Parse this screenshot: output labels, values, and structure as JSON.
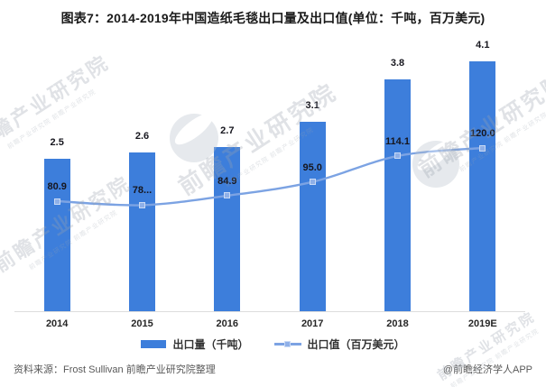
{
  "title": "图表7：2014-2019年中国造纸毛毯出口量及出口值(单位：千吨，百万美元)",
  "chart_data": {
    "type": "bar+line combo",
    "categories": [
      "2014",
      "2015",
      "2016",
      "2017",
      "2018",
      "2019E"
    ],
    "series": [
      {
        "name": "出口量（千吨）",
        "type": "bar",
        "axis": "left",
        "values": [
          2.5,
          2.6,
          2.7,
          3.1,
          3.8,
          4.1
        ],
        "labels": [
          "2.5",
          "2.6",
          "2.7",
          "3.1",
          "3.8",
          "4.1"
        ],
        "color": "#3d7edb"
      },
      {
        "name": "出口值（百万美元）",
        "type": "line",
        "axis": "right",
        "values": [
          80.9,
          78,
          84.9,
          95.0,
          114.1,
          120.0
        ],
        "labels": [
          "80.9",
          "78...",
          "84.9",
          "95.0",
          "114.1",
          "120.0"
        ],
        "color": "#7ca3e3",
        "marker_color": "#8fb0e8"
      }
    ],
    "left_axis": {
      "min": 0,
      "implied_max": 4.5,
      "unit": "千吨",
      "visible": false
    },
    "right_axis": {
      "min": 0,
      "implied_max": 200,
      "unit": "百万美元",
      "visible": false
    },
    "grid": false,
    "data_labels": true,
    "legend_position": "bottom"
  },
  "legend": {
    "items": [
      {
        "label": "出口量（千吨）",
        "swatch": "bar"
      },
      {
        "label": "出口值（百万美元）",
        "swatch": "line-marker"
      }
    ]
  },
  "footer": {
    "source": "资料来源：Frost Sullivan 前瞻产业研究院整理",
    "credit": "@前瞻经济学人APP"
  },
  "watermark": {
    "text": "前瞻产业研究院"
  },
  "colors": {
    "bar": "#3d7edb",
    "line": "#7ca3e3",
    "marker_fill": "#8fb0e8",
    "marker_border": "#c9daf5",
    "axis_line": "#dcdcdc",
    "label_text": "#16161e"
  }
}
